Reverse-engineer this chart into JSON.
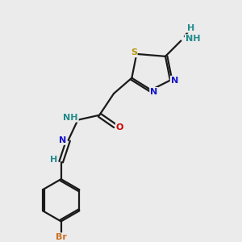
{
  "bg_color": "#ebebeb",
  "atom_colors": {
    "S": "#b8960c",
    "N": "#1414c8",
    "O": "#cc0000",
    "Br": "#c87020",
    "C": "#000000",
    "H": "#228b8b"
  },
  "bond_color": "#1a1a1a",
  "lw": 1.6
}
